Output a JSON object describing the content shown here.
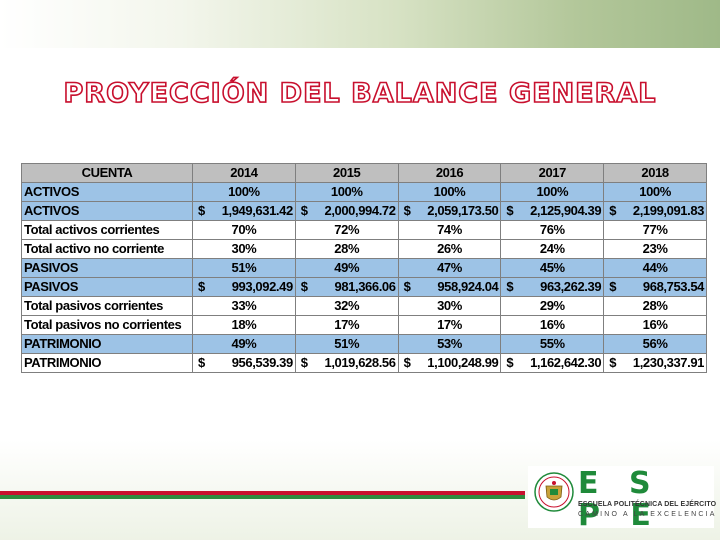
{
  "title": "PROYECCIÓN DEL BALANCE GENERAL",
  "table": {
    "headers": [
      "CUENTA",
      "2014",
      "2015",
      "2016",
      "2017",
      "2018"
    ],
    "rows": [
      {
        "label": "ACTIVOS",
        "style": "blue",
        "kind": "pct",
        "values": [
          "100%",
          "100%",
          "100%",
          "100%",
          "100%"
        ]
      },
      {
        "label": "ACTIVOS",
        "style": "blue",
        "kind": "money",
        "values": [
          "1,949,631.42",
          "2,000,994.72",
          "2,059,173.50",
          "2,125,904.39",
          "2,199,091.83"
        ]
      },
      {
        "label": "Total activos corrientes",
        "style": "white",
        "kind": "pct",
        "values": [
          "70%",
          "72%",
          "74%",
          "76%",
          "77%"
        ]
      },
      {
        "label": "Total activo no corriente",
        "style": "white",
        "kind": "pct",
        "values": [
          "30%",
          "28%",
          "26%",
          "24%",
          "23%"
        ]
      },
      {
        "label": "PASIVOS",
        "style": "blue",
        "kind": "pct",
        "values": [
          "51%",
          "49%",
          "47%",
          "45%",
          "44%"
        ]
      },
      {
        "label": "PASIVOS",
        "style": "blue",
        "kind": "money",
        "values": [
          "993,092.49",
          "981,366.06",
          "958,924.04",
          "963,262.39",
          "968,753.54"
        ]
      },
      {
        "label": "Total pasivos corrientes",
        "style": "white",
        "kind": "pct",
        "values": [
          "33%",
          "32%",
          "30%",
          "29%",
          "28%"
        ]
      },
      {
        "label": "Total pasivos no corrientes",
        "style": "white",
        "kind": "pct",
        "values": [
          "18%",
          "17%",
          "17%",
          "16%",
          "16%"
        ]
      },
      {
        "label": "PATRIMONIO",
        "style": "blue",
        "kind": "pct",
        "values": [
          "49%",
          "51%",
          "53%",
          "55%",
          "56%"
        ]
      },
      {
        "label": "PATRIMONIO",
        "style": "white",
        "kind": "money",
        "values": [
          "956,539.39",
          "1,019,628.56",
          "1,100,248.99",
          "1,162,642.30",
          "1,230,337.91"
        ]
      }
    ],
    "currency_symbol": "$"
  },
  "logo": {
    "name": "E S P E",
    "subtitle": "ESCUELA POLITÉCNICA DEL EJÉRCITO",
    "tagline": "CAMINO A LA EXCELENCIA",
    "colors": {
      "green": "#1f8a3a",
      "red": "#c8102e"
    }
  }
}
